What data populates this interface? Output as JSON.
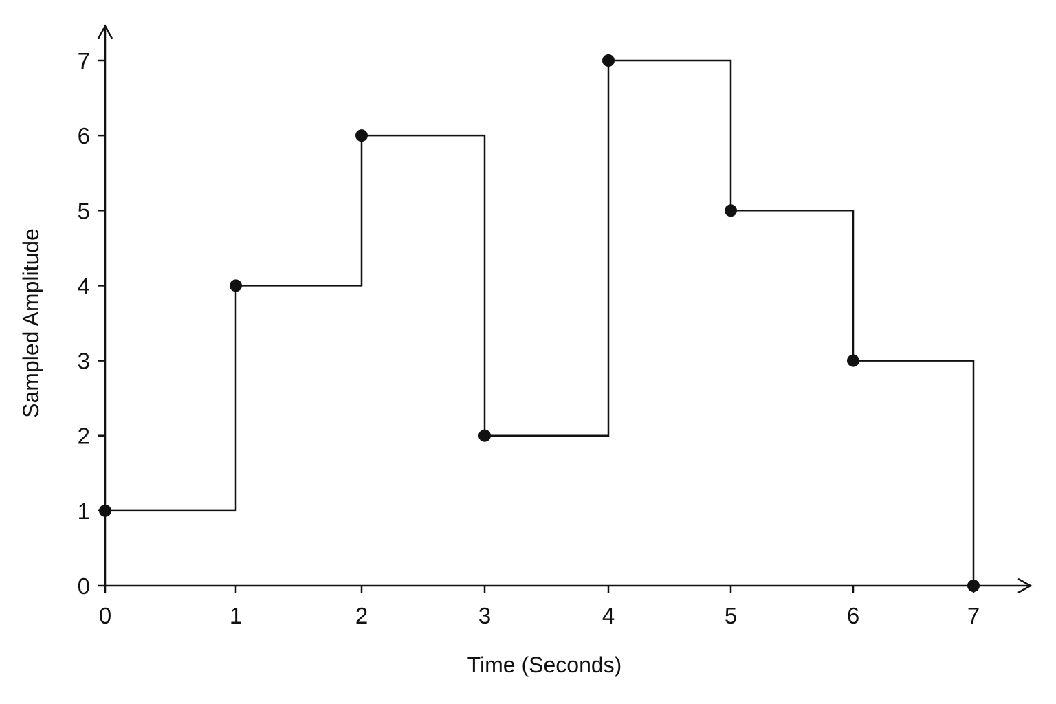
{
  "chart_data": {
    "type": "line",
    "style": "step-post",
    "title": "",
    "xlabel": "Time (Seconds)",
    "ylabel": "Sampled Amplitude",
    "x": [
      0,
      1,
      2,
      3,
      4,
      5,
      6,
      7
    ],
    "series": [
      {
        "values": [
          1,
          4,
          6,
          2,
          7,
          5,
          3,
          0
        ]
      }
    ],
    "xticks": [
      "0",
      "1",
      "2",
      "3",
      "4",
      "5",
      "6",
      "7"
    ],
    "yticks": [
      "0",
      "1",
      "2",
      "3",
      "4",
      "5",
      "6",
      "7"
    ],
    "xlim": [
      0,
      7
    ],
    "ylim": [
      0,
      7
    ],
    "grid": false,
    "markers": "filled-circle",
    "colors": {
      "line": "#111111",
      "marker": "#111111",
      "axis": "#111111"
    }
  }
}
